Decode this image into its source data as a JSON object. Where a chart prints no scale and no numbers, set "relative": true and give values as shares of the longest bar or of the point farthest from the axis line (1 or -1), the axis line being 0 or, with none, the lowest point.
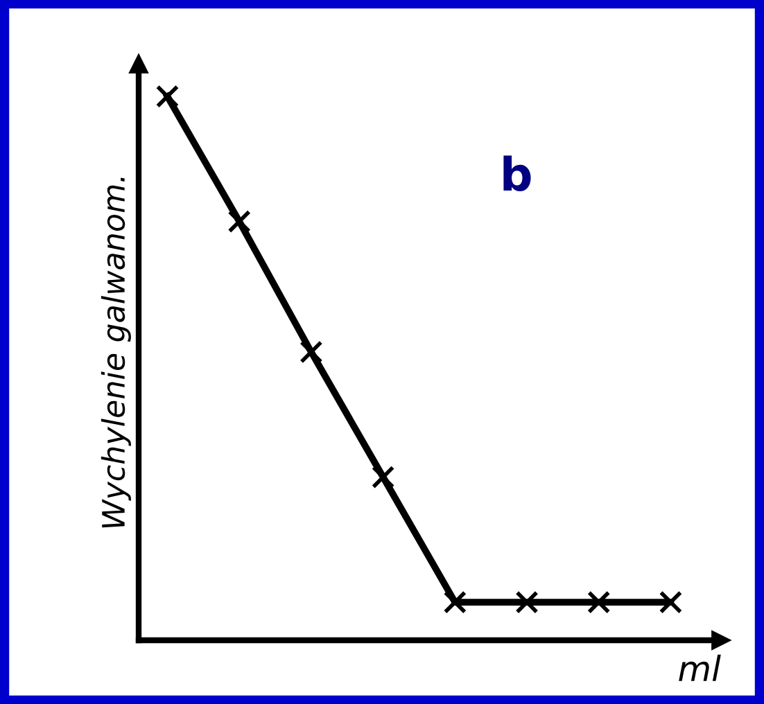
{
  "chart_data": {
    "type": "line",
    "relative": true,
    "ylabel": "Wychylenie galwanom.",
    "xlabel": "ml",
    "annotations": [
      "b"
    ],
    "categories": [
      null,
      null,
      null,
      null,
      null,
      null,
      null,
      null
    ],
    "series": [
      {
        "color": "#000000",
        "values": [
          1,
          0.77,
          0.53,
          0.3,
          0.07,
          0.07,
          0.07,
          0.07
        ]
      }
    ],
    "marker": "cross",
    "line_style": "solid",
    "grid": false,
    "legend": false
  }
}
